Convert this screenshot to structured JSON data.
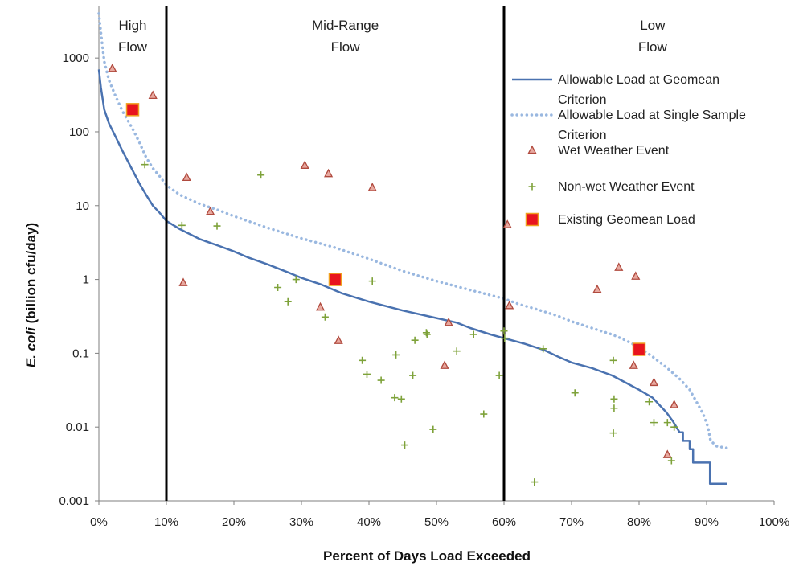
{
  "chart_data": {
    "type": "scatter",
    "title": "",
    "xlabel": "Percent of Days Load Exceeded",
    "ylabel_italic": "E. coli",
    "ylabel_rest": " (billion cfu/day)",
    "xlim": [
      0,
      100
    ],
    "ylim": [
      0.001,
      5000
    ],
    "yscale": "log",
    "x_ticks": [
      0,
      10,
      20,
      30,
      40,
      50,
      60,
      70,
      80,
      90,
      100
    ],
    "x_tick_labels": [
      "0%",
      "10%",
      "20%",
      "30%",
      "40%",
      "50%",
      "60%",
      "70%",
      "80%",
      "90%",
      "100%"
    ],
    "y_ticks": [
      0.001,
      0.01,
      0.1,
      1,
      10,
      100,
      1000
    ],
    "y_tick_labels": [
      "0.001",
      "0.01",
      "0.1",
      "1",
      "10",
      "100",
      "1000"
    ],
    "regions": [
      {
        "label_line1": "High",
        "label_line2": "Flow",
        "x_center": 5
      },
      {
        "label_line1": "Mid-Range",
        "label_line2": "Flow",
        "x_center": 36.5
      },
      {
        "label_line1": "Low",
        "label_line2": "Flow",
        "x_center": 82
      }
    ],
    "region_dividers": [
      10,
      60
    ],
    "legend": {
      "placement": "right",
      "entries": [
        {
          "line1": "Allowable Load at Geomean",
          "line2": "Criterion"
        },
        {
          "line1": "Allowable Load at Single Sample",
          "line2": "Criterion"
        },
        {
          "line1": "Wet Weather Event",
          "line2": ""
        },
        {
          "line1": "Non-wet Weather Event",
          "line2": ""
        },
        {
          "line1": "Existing Geomean Load",
          "line2": ""
        }
      ]
    },
    "colors": {
      "geomean_line": "#4a72b0",
      "single_sample_line": "#9ab8e0",
      "wet_marker_stroke": "#b04a3e",
      "wet_marker_fill": "#e8a9a0",
      "nonwet_marker": "#7ea23a",
      "existing_fill": "#e8141e",
      "existing_stroke": "#f0a020",
      "divider": "#000000"
    },
    "series": [
      {
        "name": "Allowable Load at Geomean Criterion",
        "style": "solid",
        "points": [
          [
            0,
            700
          ],
          [
            0.3,
            400
          ],
          [
            0.8,
            200
          ],
          [
            1.5,
            130
          ],
          [
            2.5,
            85
          ],
          [
            3.5,
            55
          ],
          [
            5,
            30
          ],
          [
            6,
            20
          ],
          [
            7,
            14
          ],
          [
            8,
            10
          ],
          [
            9,
            8
          ],
          [
            10,
            6.2
          ],
          [
            12,
            4.8
          ],
          [
            15,
            3.5
          ],
          [
            18,
            2.8
          ],
          [
            20,
            2.4
          ],
          [
            22,
            2.0
          ],
          [
            25,
            1.6
          ],
          [
            28,
            1.25
          ],
          [
            30,
            1.05
          ],
          [
            33,
            0.85
          ],
          [
            36,
            0.65
          ],
          [
            40,
            0.5
          ],
          [
            45,
            0.38
          ],
          [
            50,
            0.3
          ],
          [
            53,
            0.26
          ],
          [
            55,
            0.22
          ],
          [
            58,
            0.18
          ],
          [
            60,
            0.16
          ],
          [
            63,
            0.135
          ],
          [
            66,
            0.11
          ],
          [
            68,
            0.09
          ],
          [
            70,
            0.075
          ],
          [
            73,
            0.063
          ],
          [
            76,
            0.05
          ],
          [
            78,
            0.04
          ],
          [
            80,
            0.032
          ],
          [
            82,
            0.025
          ],
          [
            83,
            0.02
          ],
          [
            84,
            0.016
          ],
          [
            85,
            0.012
          ],
          [
            86,
            0.0085
          ],
          [
            86.5,
            0.0085
          ],
          [
            86.5,
            0.0065
          ],
          [
            87.5,
            0.0065
          ],
          [
            87.5,
            0.005
          ],
          [
            88,
            0.005
          ],
          [
            88,
            0.0033
          ],
          [
            89,
            0.0033
          ],
          [
            90.5,
            0.0033
          ],
          [
            90.5,
            0.0017
          ],
          [
            93,
            0.0017
          ]
        ]
      },
      {
        "name": "Allowable Load at Single Sample Criterion",
        "style": "dotted",
        "points": [
          [
            0,
            4000
          ],
          [
            0.3,
            2200
          ],
          [
            0.8,
            900
          ],
          [
            1.5,
            500
          ],
          [
            2.5,
            300
          ],
          [
            3.5,
            190
          ],
          [
            5,
            110
          ],
          [
            6,
            72
          ],
          [
            7,
            45
          ],
          [
            8,
            32
          ],
          [
            9,
            25
          ],
          [
            10,
            19
          ],
          [
            12,
            14
          ],
          [
            15,
            10.5
          ],
          [
            18,
            8.5
          ],
          [
            20,
            7.2
          ],
          [
            25,
            5.0
          ],
          [
            30,
            3.6
          ],
          [
            35,
            2.7
          ],
          [
            40,
            1.9
          ],
          [
            45,
            1.3
          ],
          [
            50,
            0.95
          ],
          [
            55,
            0.72
          ],
          [
            60,
            0.55
          ],
          [
            62,
            0.47
          ],
          [
            65,
            0.39
          ],
          [
            68,
            0.32
          ],
          [
            70,
            0.27
          ],
          [
            73,
            0.22
          ],
          [
            76,
            0.18
          ],
          [
            78,
            0.15
          ],
          [
            80,
            0.12
          ],
          [
            82,
            0.09
          ],
          [
            84,
            0.065
          ],
          [
            86,
            0.045
          ],
          [
            87.5,
            0.032
          ],
          [
            88.5,
            0.022
          ],
          [
            89.5,
            0.015
          ],
          [
            90.2,
            0.01
          ],
          [
            90.6,
            0.0065
          ],
          [
            91.5,
            0.0055
          ],
          [
            93,
            0.0052
          ]
        ]
      },
      {
        "name": "Wet Weather Event",
        "marker": "triangle",
        "points": [
          [
            2,
            720
          ],
          [
            8,
            310
          ],
          [
            13,
            24
          ],
          [
            16.5,
            8.3
          ],
          [
            12.5,
            0.9
          ],
          [
            30.5,
            35
          ],
          [
            34,
            27
          ],
          [
            40.5,
            17.5
          ],
          [
            32.8,
            0.42
          ],
          [
            35.5,
            0.148
          ],
          [
            51.8,
            0.26
          ],
          [
            51.2,
            0.068
          ],
          [
            60.5,
            5.5
          ],
          [
            60.8,
            0.44
          ],
          [
            73.8,
            0.73
          ],
          [
            77,
            1.45
          ],
          [
            79.5,
            1.1
          ],
          [
            79.2,
            0.068
          ],
          [
            82.2,
            0.04
          ],
          [
            85.2,
            0.02
          ],
          [
            84.2,
            0.0042
          ]
        ]
      },
      {
        "name": "Non-wet Weather Event",
        "marker": "plus",
        "points": [
          [
            6.8,
            36
          ],
          [
            12.3,
            5.4
          ],
          [
            17.5,
            5.3
          ],
          [
            24,
            26
          ],
          [
            26.5,
            0.78
          ],
          [
            28,
            0.5
          ],
          [
            29.2,
            1.0
          ],
          [
            33.5,
            0.31
          ],
          [
            39,
            0.08
          ],
          [
            39.7,
            0.052
          ],
          [
            40.5,
            0.95
          ],
          [
            41.8,
            0.043
          ],
          [
            43.8,
            0.025
          ],
          [
            44,
            0.095
          ],
          [
            44.8,
            0.024
          ],
          [
            45.3,
            0.0057
          ],
          [
            46.5,
            0.05
          ],
          [
            46.8,
            0.15
          ],
          [
            48.5,
            0.19
          ],
          [
            48.6,
            0.18
          ],
          [
            49.5,
            0.0093
          ],
          [
            53,
            0.107
          ],
          [
            55.5,
            0.18
          ],
          [
            57,
            0.015
          ],
          [
            59.3,
            0.05
          ],
          [
            60,
            0.2
          ],
          [
            60.1,
            0.16
          ],
          [
            64.5,
            0.0018
          ],
          [
            65.8,
            0.115
          ],
          [
            70.5,
            0.029
          ],
          [
            76.2,
            0.08
          ],
          [
            76.3,
            0.024
          ],
          [
            76.3,
            0.018
          ],
          [
            76.2,
            0.0083
          ],
          [
            81.5,
            0.022
          ],
          [
            82.2,
            0.0115
          ],
          [
            84.2,
            0.0115
          ],
          [
            85.2,
            0.01
          ],
          [
            84.8,
            0.0035
          ]
        ]
      },
      {
        "name": "Existing Geomean Load",
        "marker": "square",
        "points": [
          [
            5,
            200
          ],
          [
            35,
            1.0
          ],
          [
            80,
            0.113
          ]
        ]
      }
    ]
  }
}
